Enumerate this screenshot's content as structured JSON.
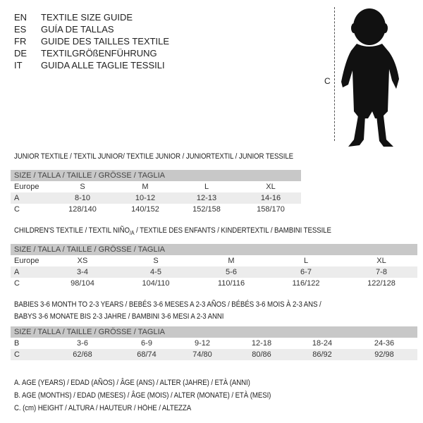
{
  "header": {
    "lines": [
      {
        "code": "EN",
        "text": "TEXTILE SIZE GUIDE"
      },
      {
        "code": "ES",
        "text": "GUÍA DE TALLAS"
      },
      {
        "code": "FR",
        "text": "GUIDE DES TAILLES TEXTILE"
      },
      {
        "code": "DE",
        "text": "TEXTILGRÖßENFÜHRUNG"
      },
      {
        "code": "IT",
        "text": "GUIDA ALLE TAGLIE TESSILI"
      }
    ]
  },
  "figure": {
    "icon": "child-silhouette",
    "measure_label": "C"
  },
  "junior": {
    "title": "JUNIOR TEXTILE / TEXTIL JUNIOR/ TEXTILE JUNIOR / JUNIORTEXTIL / JUNIOR TESSILE",
    "header": "SIZE / TALLA / TAILLE / GRÖSSE / TAGLIA",
    "rows": [
      {
        "label": "Europe",
        "values": [
          "S",
          "M",
          "L",
          "XL"
        ]
      },
      {
        "label": "A",
        "values": [
          "8-10",
          "10-12",
          "12-13",
          "14-16"
        ]
      },
      {
        "label": "C",
        "values": [
          "128/140",
          "140/152",
          "152/158",
          "158/170"
        ]
      }
    ]
  },
  "children": {
    "title_a": "CHILDREN'S TEXTILE / TEXTIL NIÑO",
    "title_sub": "/A",
    "title_b": " / TEXTILE DES ENFANTS / KINDERTEXTIL / BAMBINI TESSILE",
    "header": "SIZE / TALLA / TAILLE / GRÖSSE / TAGLIA",
    "rows": [
      {
        "label": "Europe",
        "values": [
          "XS",
          "S",
          "M",
          "L",
          "XL"
        ]
      },
      {
        "label": "A",
        "values": [
          "3-4",
          "4-5",
          "5-6",
          "6-7",
          "7-8"
        ]
      },
      {
        "label": "C",
        "values": [
          "98/104",
          "104/110",
          "110/116",
          "116/122",
          "122/128"
        ]
      }
    ]
  },
  "babies": {
    "title_1": "BABIES 3-6 MONTH TO 2-3 YEARS / BEBÉS 3-6 MESES A 2-3 AÑOS / BÉBÉS 3-6 MOIS À 2-3 ANS /",
    "title_2": "BABYS 3-6 MONATE BIS 2-3 JAHRE / BAMBINI 3-6 MESI A 2-3 ANNI",
    "header": "SIZE / TALLA / TAILLE / GRÖSSE / TAGLIA",
    "rows": [
      {
        "label": "B",
        "values": [
          "3-6",
          "6-9",
          "9-12",
          "12-18",
          "18-24",
          "24-36"
        ]
      },
      {
        "label": "C",
        "values": [
          "62/68",
          "68/74",
          "74/80",
          "80/86",
          "86/92",
          "92/98"
        ]
      }
    ]
  },
  "legend": [
    "A. AGE (YEARS) / EDAD (AÑOS) / ÂGE (ANS) / ALTER (JAHRE) / ETÀ (ANNI)",
    "B. AGE (MONTHS) / EDAD (MESES) / ÂGE (MOIS) / ALTER (MONATE) / ETÀ (MESI)",
    "C. (cm) HEIGHT / ALTURA / HAUTEUR / HÖHE / ALTEZZA"
  ]
}
